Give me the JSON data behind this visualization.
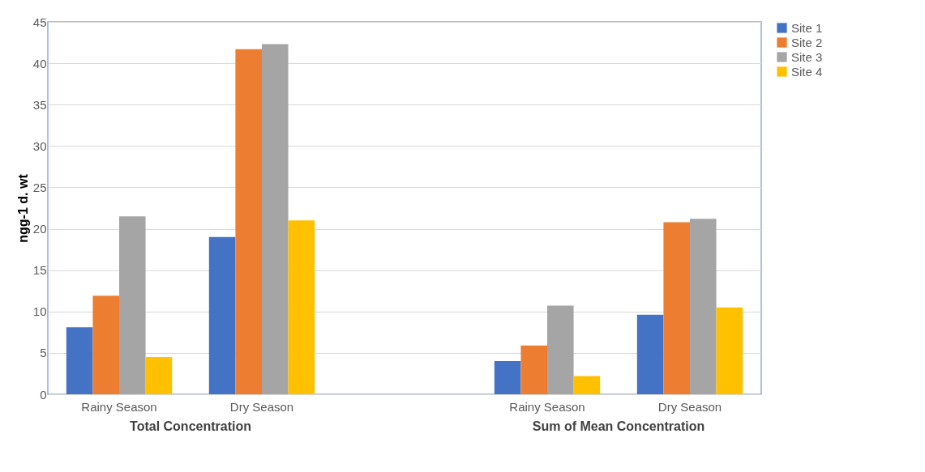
{
  "chart_data": {
    "type": "bar",
    "ylabel": "ngg-1 d. wt",
    "categories": [
      "Rainy Season",
      "Dry Season",
      null,
      "Rainy Season",
      "Dry Season"
    ],
    "series": [
      {
        "name": "Site 1",
        "color": "#4472c4",
        "values": [
          8.1,
          19,
          null,
          4.0,
          9.6
        ]
      },
      {
        "name": "Site 2",
        "color": "#ed7d31",
        "values": [
          11.9,
          41.7,
          null,
          5.9,
          20.8
        ]
      },
      {
        "name": "Site 3",
        "color": "#a5a5a5",
        "values": [
          21.5,
          42.3,
          null,
          10.7,
          21.2
        ]
      },
      {
        "name": "Site 4",
        "color": "#ffc000",
        "values": [
          4.5,
          21,
          null,
          2.2,
          10.5
        ]
      }
    ],
    "ylim": [
      0,
      45
    ],
    "yticks": [
      0,
      5,
      10,
      15,
      20,
      25,
      30,
      35,
      40,
      45
    ],
    "grid": "y",
    "legend": "right",
    "annotations": [
      "Total Concentration",
      "Sum of Mean Concentration"
    ]
  }
}
